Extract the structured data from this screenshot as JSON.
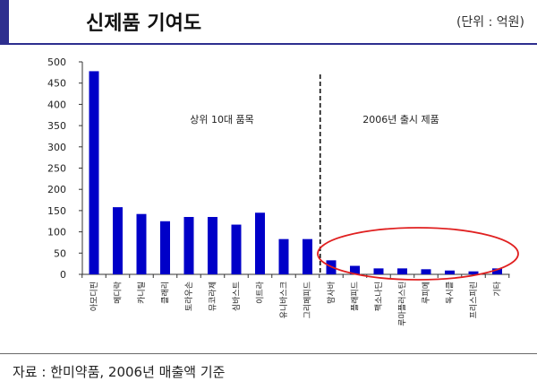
{
  "header": {
    "title": "신제품 기여도",
    "unit": "(단위 : 억원)"
  },
  "footer": {
    "source": "자료 : 한미약품, 2006년 매출액 기준"
  },
  "colors": {
    "bar": "#0000c8",
    "accent": "#2e2f8f",
    "ellipse": "#e02020"
  },
  "chart_data": {
    "type": "bar",
    "title": "",
    "xlabel": "",
    "ylabel": "",
    "ylim": [
      0,
      500
    ],
    "yticks": [
      0,
      50,
      100,
      150,
      200,
      250,
      300,
      350,
      400,
      450,
      500
    ],
    "grid": false,
    "categories": [
      "아모디핀",
      "메디락",
      "카니틸",
      "클래리",
      "토라우손",
      "뮤코라제",
      "심바스트",
      "이트라",
      "유니바스크",
      "그리페피드",
      "맘사바",
      "플래피드",
      "팩소나딘",
      "루마플러스틴",
      "루피메",
      "독시클",
      "프리스피린",
      "기타"
    ],
    "values": [
      478,
      158,
      142,
      125,
      135,
      135,
      117,
      145,
      83,
      83,
      33,
      20,
      14,
      14,
      12,
      9,
      7,
      14
    ],
    "annotations": [
      {
        "text": "상위 10대 품목"
      },
      {
        "text": "2006년 출시 제품"
      }
    ],
    "divider_after_index": 9,
    "highlighted_indices": [
      10,
      11,
      12,
      13,
      14,
      15,
      16,
      17
    ]
  }
}
